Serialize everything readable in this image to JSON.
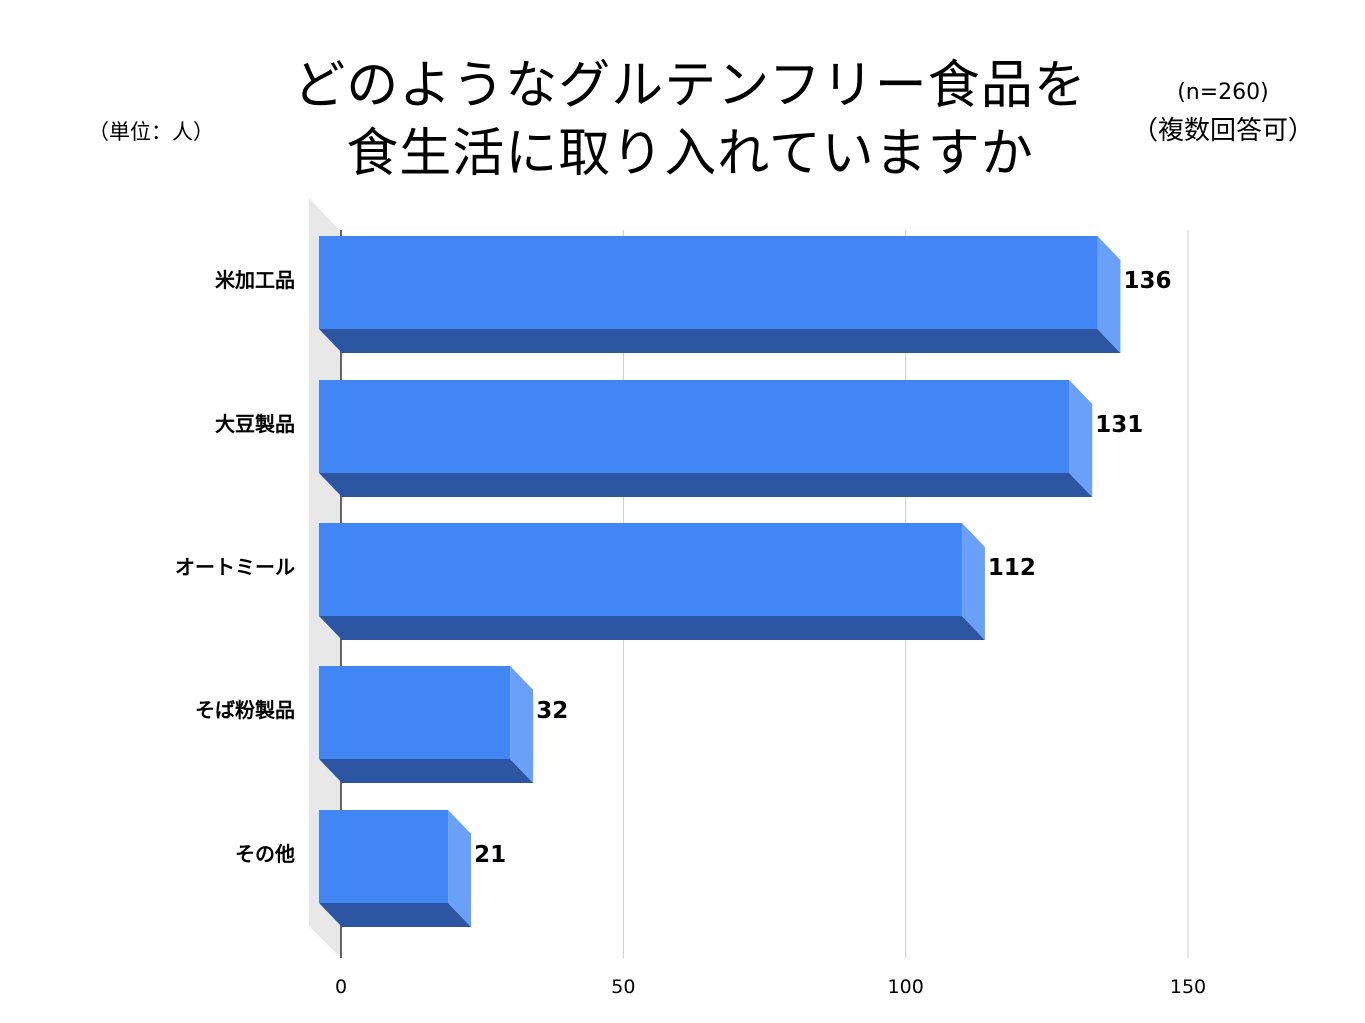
{
  "header": {
    "title_line1": "どのようなグルテンフリー食品を",
    "title_line2": "食生活に取り入れていますか",
    "unit_note": "（単位：人）",
    "sample_size": "(n=260)",
    "multiple_answers": "（複数回答可）"
  },
  "chart_data": {
    "type": "bar",
    "orientation": "horizontal",
    "style": "3d",
    "categories": [
      "米加工品",
      "大豆製品",
      "オートミール",
      "そば粉製品",
      "その他"
    ],
    "values": [
      136,
      131,
      112,
      32,
      21
    ],
    "data_labels": [
      "136",
      "131",
      "112",
      "32",
      "21"
    ],
    "xlim": [
      0,
      150
    ],
    "x_ticks": [
      0,
      50,
      100,
      150
    ],
    "x_tick_labels": [
      "0",
      "50",
      "100",
      "150"
    ],
    "grid": true,
    "legend": "none"
  },
  "colors": {
    "bar_front": "#4285f4",
    "bar_side": "#6aa0f7",
    "bar_bottom": "#2c56a2",
    "gridline": "#cccccc",
    "floor": "#e8e8e8",
    "axis": "#333333"
  }
}
